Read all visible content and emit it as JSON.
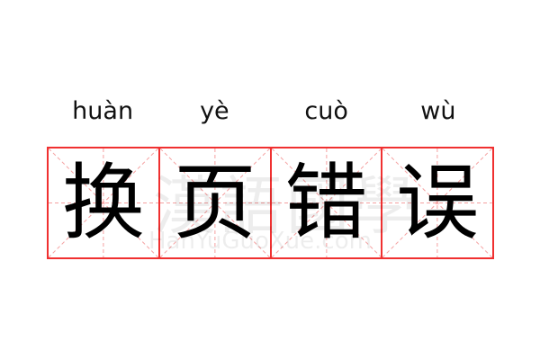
{
  "word": [
    {
      "pinyin": "huàn",
      "char": "换"
    },
    {
      "pinyin": "yè",
      "char": "页"
    },
    {
      "pinyin": "cuò",
      "char": "错"
    },
    {
      "pinyin": "wù",
      "char": "误"
    }
  ],
  "watermark": {
    "chinese": "漢語國學",
    "latin": "HanYuGuoXue.com"
  },
  "colors": {
    "grid_border": "#f03030",
    "guide_lines": "#f5a0a0",
    "text": "#000000"
  }
}
